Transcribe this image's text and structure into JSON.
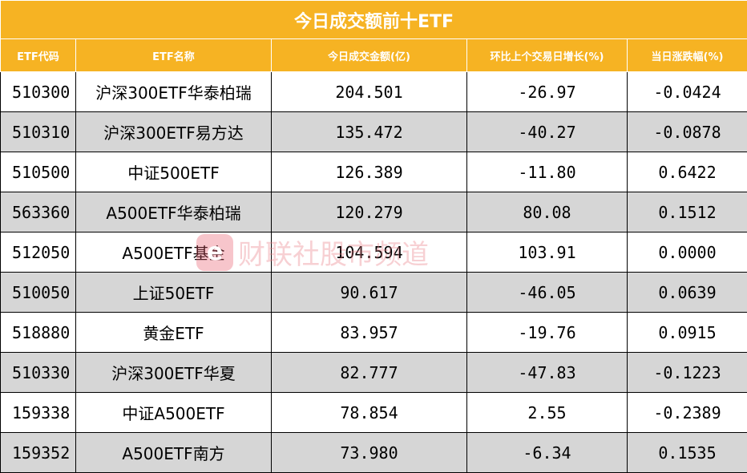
{
  "title": "今日成交额前十ETF",
  "headers": [
    "ETF代码",
    "ETF名称",
    "今日成交金额(亿)",
    "环比上个交易日增长(%)",
    "当日涨跌幅(%)"
  ],
  "rows": [
    {
      "code": "510300",
      "name": "沪深300ETF华泰柏瑞",
      "amount": "204.501",
      "growth": "-26.97",
      "change": "-0.0424"
    },
    {
      "code": "510310",
      "name": "沪深300ETF易方达",
      "amount": "135.472",
      "growth": "-40.27",
      "change": "-0.0878"
    },
    {
      "code": "510500",
      "name": "中证500ETF",
      "amount": "126.389",
      "growth": "-11.80",
      "change": "0.6422"
    },
    {
      "code": "563360",
      "name": "A500ETF华泰柏瑞",
      "amount": "120.279",
      "growth": "80.08",
      "change": "0.1512"
    },
    {
      "code": "512050",
      "name": "A500ETF基金",
      "amount": "104.594",
      "growth": "103.91",
      "change": "0.0000"
    },
    {
      "code": "510050",
      "name": "上证50ETF",
      "amount": "90.617",
      "growth": "-46.05",
      "change": "0.0639"
    },
    {
      "code": "518880",
      "name": "黄金ETF",
      "amount": "83.957",
      "growth": "-19.76",
      "change": "0.0915"
    },
    {
      "code": "510330",
      "name": "沪深300ETF华夏",
      "amount": "82.777",
      "growth": "-47.83",
      "change": "-0.1223"
    },
    {
      "code": "159338",
      "name": "中证A500ETF",
      "amount": "78.854",
      "growth": "2.55",
      "change": "-0.2389"
    },
    {
      "code": "159352",
      "name": "A500ETF南方",
      "amount": "73.980",
      "growth": "-6.34",
      "change": "0.1535"
    }
  ],
  "watermark": {
    "logo": "e",
    "text": "财联社股市频道"
  },
  "colors": {
    "header_bg": "#f6b323",
    "header_text": "#ffffff",
    "stripe": "#d6d6d6"
  }
}
